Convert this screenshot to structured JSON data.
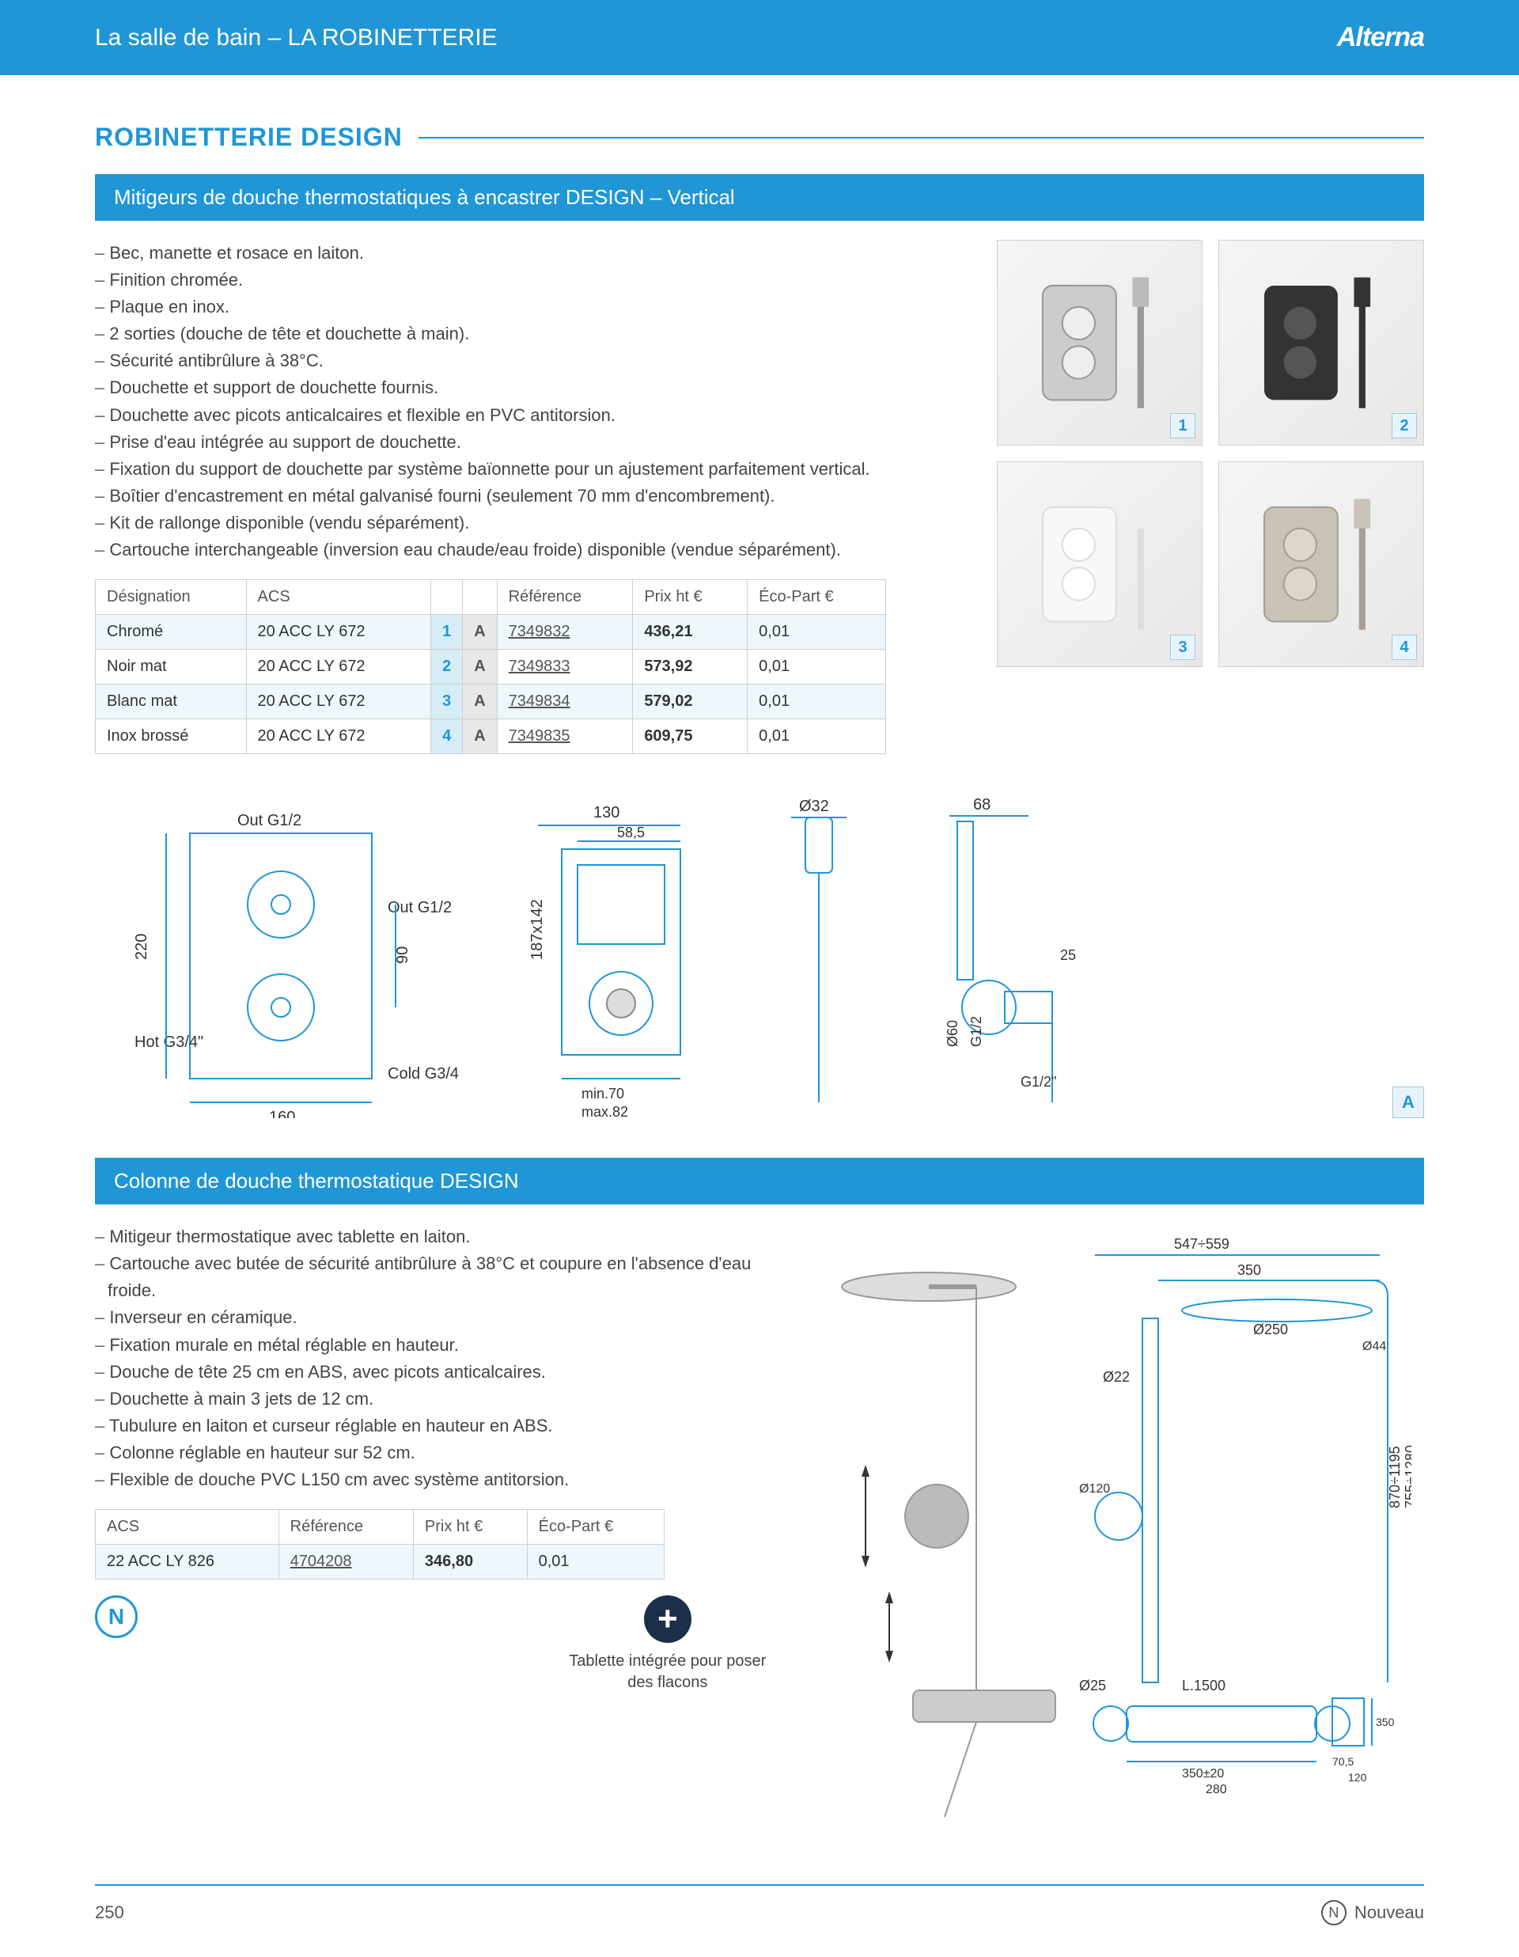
{
  "header": {
    "breadcrumb": "La salle de bain – LA ROBINETTERIE",
    "brand": "Alterna"
  },
  "section_title": "ROBINETTERIE DESIGN",
  "product1": {
    "subheader": "Mitigeurs de douche thermostatiques à encastrer DESIGN – Vertical",
    "features": [
      "Bec, manette et rosace en laiton.",
      "Finition chromée.",
      "Plaque en inox.",
      "2 sorties (douche de tête et douchette à main).",
      "Sécurité antibrûlure à 38°C.",
      "Douchette et support de douchette fournis.",
      "Douchette avec picots anticalcaires et flexible en PVC antitorsion.",
      "Prise d'eau intégrée au support de douchette.",
      "Fixation du support de douchette par système baïonnette pour un ajustement parfaitement vertical.",
      "Boîtier d'encastrement en métal galvanisé fourni (seulement 70 mm d'encombrement).",
      "Kit de rallonge disponible (vendu séparément).",
      "Cartouche interchangeable (inversion eau chaude/eau froide) disponible (vendue séparément)."
    ],
    "table": {
      "headers": [
        "Désignation",
        "ACS",
        "",
        "",
        "Référence",
        "Prix ht €",
        "Éco-Part €"
      ],
      "rows": [
        {
          "designation": "Chromé",
          "acs": "20 ACC LY 672",
          "num": "1",
          "letter": "A",
          "ref": "7349832",
          "prix": "436,21",
          "eco": "0,01"
        },
        {
          "designation": "Noir mat",
          "acs": "20 ACC LY 672",
          "num": "2",
          "letter": "A",
          "ref": "7349833",
          "prix": "573,92",
          "eco": "0,01"
        },
        {
          "designation": "Blanc mat",
          "acs": "20 ACC LY 672",
          "num": "3",
          "letter": "A",
          "ref": "7349834",
          "prix": "579,02",
          "eco": "0,01"
        },
        {
          "designation": "Inox brossé",
          "acs": "20 ACC LY 672",
          "num": "4",
          "letter": "A",
          "ref": "7349835",
          "prix": "609,75",
          "eco": "0,01"
        }
      ]
    },
    "thumbs": [
      "1",
      "2",
      "3",
      "4"
    ],
    "diagram": {
      "out_top": "Out G1/2",
      "out_side": "Out G1/2",
      "hot": "Hot G3/4\"",
      "cold": "Cold G3/4",
      "w": "160",
      "h": "220",
      "gap": "90",
      "box_w": "130",
      "box_top": "58,5",
      "box_label": "187x142",
      "box_depth": "min.70 max.82",
      "diam": "Ø32",
      "handle_w": "68",
      "handle_off": "25",
      "handle_g1": "G1/2",
      "handle_g2": "G1/2\"",
      "handle_d": "Ø60",
      "letter": "A"
    }
  },
  "product2": {
    "subheader": "Colonne de douche thermostatique DESIGN",
    "features": [
      "Mitigeur thermostatique avec tablette en laiton.",
      "Cartouche avec butée de sécurité antibrûlure à 38°C et coupure en l'absence d'eau froide.",
      "Inverseur en céramique.",
      "Fixation murale en métal réglable en hauteur.",
      "Douche de tête 25 cm en ABS, avec picots anticalcaires.",
      "Douchette à main 3 jets de 12 cm.",
      "Tubulure en laiton et curseur réglable en hauteur en ABS.",
      "Colonne réglable en hauteur sur 52 cm.",
      "Flexible de douche PVC L150 cm avec système antitorsion."
    ],
    "table": {
      "headers": [
        "ACS",
        "Référence",
        "Prix ht €",
        "Éco-Part €"
      ],
      "row": {
        "acs": "22 ACC LY 826",
        "ref": "4704208",
        "prix": "346,80",
        "eco": "0,01"
      }
    },
    "plus_caption": "Tablette intégrée pour poser des flacons",
    "diagram": {
      "top_w": "547÷559",
      "arm": "350",
      "head": "Ø250",
      "sleeve": "Ø44",
      "tube": "Ø22",
      "hand": "Ø120",
      "base": "Ø25",
      "hose": "L.1500",
      "mixer_w": "350±20",
      "mixer_ctr": "280",
      "mixer_h": "350",
      "mixer_off": "70,5",
      "mixer_pin": "120",
      "height1": "870÷1195",
      "height2": "755÷1280"
    }
  },
  "footer": {
    "page": "250",
    "nouveau": "Nouveau",
    "n_letter": "N"
  }
}
